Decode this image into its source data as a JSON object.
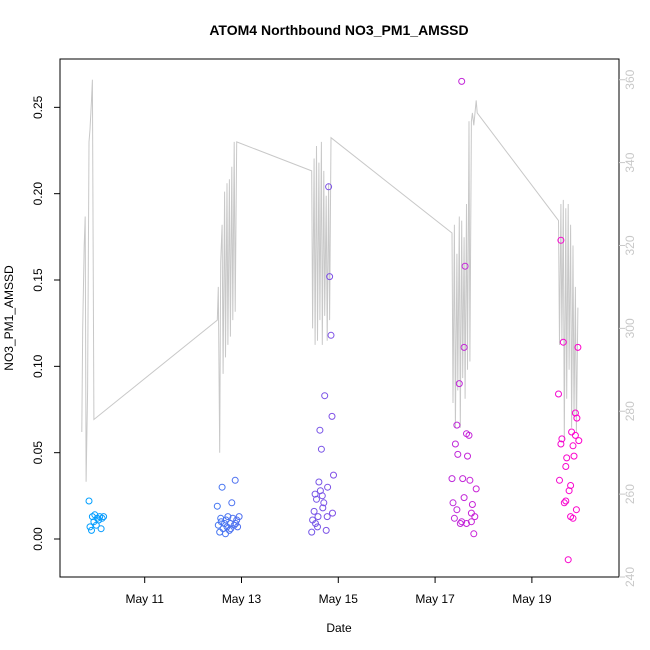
{
  "chart_data": {
    "type": "scatter",
    "title": "ATOM4 Northbound NO3_PM1_AMSSD",
    "xlabel": "Date",
    "ylabel": "NO3_PM1_AMSSD",
    "x_ticks": [
      "May 11",
      "May 13",
      "May 15",
      "May 17",
      "May 19"
    ],
    "x_tick_days": [
      11,
      13,
      15,
      17,
      19
    ],
    "xlim_days": [
      9.25,
      20.8
    ],
    "ylim": [
      -0.022,
      0.278
    ],
    "y_ticks": [
      "0.00",
      "0.05",
      "0.10",
      "0.15",
      "0.20",
      "0.25"
    ],
    "y_tick_values": [
      0,
      0.05,
      0.1,
      0.15,
      0.2,
      0.25
    ],
    "y2lim": [
      240,
      365
    ],
    "y2_ticks": [
      "240",
      "260",
      "280",
      "300",
      "320",
      "340",
      "360"
    ],
    "y2_tick_values": [
      240,
      260,
      280,
      300,
      320,
      340,
      360
    ],
    "point_color_start": "#00a0ff",
    "point_color_end": "#ff00cc",
    "line_color": "#c8c8c8",
    "points": [
      [
        9.85,
        0.022
      ],
      [
        9.87,
        0.007
      ],
      [
        9.9,
        0.005
      ],
      [
        9.92,
        0.013
      ],
      [
        9.95,
        0.01
      ],
      [
        9.97,
        0.014
      ],
      [
        10.0,
        0.008
      ],
      [
        10.02,
        0.012
      ],
      [
        10.05,
        0.011
      ],
      [
        10.07,
        0.013
      ],
      [
        10.1,
        0.006
      ],
      [
        10.12,
        0.012
      ],
      [
        10.15,
        0.013
      ],
      [
        12.5,
        0.019
      ],
      [
        12.52,
        0.008
      ],
      [
        12.55,
        0.004
      ],
      [
        12.57,
        0.012
      ],
      [
        12.6,
        0.03
      ],
      [
        12.62,
        0.006
      ],
      [
        12.65,
        0.009
      ],
      [
        12.67,
        0.003
      ],
      [
        12.7,
        0.007
      ],
      [
        12.72,
        0.013
      ],
      [
        12.75,
        0.005
      ],
      [
        12.77,
        0.009
      ],
      [
        12.8,
        0.021
      ],
      [
        12.82,
        0.012
      ],
      [
        12.85,
        0.008
      ],
      [
        12.87,
        0.034
      ],
      [
        12.9,
        0.011
      ],
      [
        12.92,
        0.007
      ],
      [
        12.95,
        0.013
      ],
      [
        12.58,
        0.01
      ],
      [
        12.68,
        0.011
      ],
      [
        12.78,
        0.006
      ],
      [
        12.88,
        0.009
      ],
      [
        14.45,
        0.004
      ],
      [
        14.47,
        0.011
      ],
      [
        14.5,
        0.016
      ],
      [
        14.52,
        0.026
      ],
      [
        14.55,
        0.023
      ],
      [
        14.57,
        0.007
      ],
      [
        14.6,
        0.033
      ],
      [
        14.62,
        0.063
      ],
      [
        14.65,
        0.052
      ],
      [
        14.67,
        0.025
      ],
      [
        14.7,
        0.021
      ],
      [
        14.72,
        0.083
      ],
      [
        14.75,
        0.005
      ],
      [
        14.77,
        0.013
      ],
      [
        14.8,
        0.204
      ],
      [
        14.82,
        0.152
      ],
      [
        14.85,
        0.118
      ],
      [
        14.87,
        0.071
      ],
      [
        14.9,
        0.037
      ],
      [
        14.58,
        0.013
      ],
      [
        14.68,
        0.018
      ],
      [
        14.78,
        0.03
      ],
      [
        14.88,
        0.015
      ],
      [
        14.53,
        0.009
      ],
      [
        14.63,
        0.028
      ],
      [
        17.35,
        0.035
      ],
      [
        17.37,
        0.021
      ],
      [
        17.4,
        0.012
      ],
      [
        17.42,
        0.055
      ],
      [
        17.45,
        0.066
      ],
      [
        17.47,
        0.049
      ],
      [
        17.5,
        0.09
      ],
      [
        17.52,
        0.009
      ],
      [
        17.55,
        0.265
      ],
      [
        17.57,
        0.035
      ],
      [
        17.6,
        0.111
      ],
      [
        17.62,
        0.158
      ],
      [
        17.65,
        0.061
      ],
      [
        17.67,
        0.048
      ],
      [
        17.7,
        0.06
      ],
      [
        17.72,
        0.034
      ],
      [
        17.75,
        0.01
      ],
      [
        17.77,
        0.02
      ],
      [
        17.8,
        0.003
      ],
      [
        17.82,
        0.013
      ],
      [
        17.85,
        0.029
      ],
      [
        17.45,
        0.017
      ],
      [
        17.55,
        0.01
      ],
      [
        17.65,
        0.009
      ],
      [
        17.75,
        0.015
      ],
      [
        17.6,
        0.024
      ],
      [
        19.55,
        0.084
      ],
      [
        19.57,
        0.034
      ],
      [
        19.6,
        0.173
      ],
      [
        19.62,
        0.058
      ],
      [
        19.65,
        0.114
      ],
      [
        19.67,
        0.021
      ],
      [
        19.7,
        0.042
      ],
      [
        19.72,
        0.047
      ],
      [
        19.75,
        -0.012
      ],
      [
        19.77,
        0.028
      ],
      [
        19.8,
        0.031
      ],
      [
        19.82,
        0.062
      ],
      [
        19.85,
        0.054
      ],
      [
        19.87,
        0.048
      ],
      [
        19.9,
        0.073
      ],
      [
        19.92,
        0.017
      ],
      [
        19.95,
        0.111
      ],
      [
        19.97,
        0.057
      ],
      [
        19.6,
        0.055
      ],
      [
        19.7,
        0.022
      ],
      [
        19.8,
        0.013
      ],
      [
        19.9,
        0.06
      ],
      [
        19.93,
        0.07
      ],
      [
        19.85,
        0.012
      ]
    ],
    "line": [
      [
        9.7,
        275
      ],
      [
        9.72,
        300
      ],
      [
        9.75,
        320
      ],
      [
        9.77,
        327
      ],
      [
        9.79,
        263
      ],
      [
        9.82,
        285
      ],
      [
        9.85,
        345
      ],
      [
        9.87,
        348
      ],
      [
        9.9,
        355
      ],
      [
        9.92,
        360
      ],
      [
        9.95,
        278
      ],
      [
        12.5,
        302
      ],
      [
        12.52,
        310
      ],
      [
        12.55,
        270
      ],
      [
        12.57,
        316
      ],
      [
        12.6,
        325
      ],
      [
        12.62,
        289
      ],
      [
        12.65,
        333
      ],
      [
        12.67,
        293
      ],
      [
        12.7,
        335
      ],
      [
        12.72,
        296
      ],
      [
        12.75,
        336
      ],
      [
        12.77,
        298
      ],
      [
        12.8,
        339
      ],
      [
        12.82,
        302
      ],
      [
        12.85,
        345
      ],
      [
        12.87,
        304
      ],
      [
        12.9,
        345
      ],
      [
        14.45,
        338
      ],
      [
        14.47,
        300
      ],
      [
        14.5,
        341
      ],
      [
        14.52,
        296
      ],
      [
        14.55,
        344
      ],
      [
        14.57,
        297
      ],
      [
        14.6,
        340
      ],
      [
        14.62,
        302
      ],
      [
        14.65,
        345
      ],
      [
        14.67,
        296
      ],
      [
        14.7,
        338
      ],
      [
        14.72,
        303
      ],
      [
        14.75,
        332
      ],
      [
        14.77,
        297
      ],
      [
        14.8,
        335
      ],
      [
        14.82,
        302
      ],
      [
        14.85,
        346
      ],
      [
        17.35,
        323
      ],
      [
        17.37,
        282
      ],
      [
        17.4,
        325
      ],
      [
        17.42,
        276
      ],
      [
        17.45,
        318
      ],
      [
        17.47,
        285
      ],
      [
        17.5,
        327
      ],
      [
        17.52,
        276
      ],
      [
        17.55,
        326
      ],
      [
        17.57,
        288
      ],
      [
        17.6,
        322
      ],
      [
        17.62,
        283
      ],
      [
        17.65,
        330
      ],
      [
        17.67,
        290
      ],
      [
        17.7,
        350
      ],
      [
        17.72,
        292
      ],
      [
        17.75,
        350
      ],
      [
        17.77,
        352
      ],
      [
        17.8,
        349
      ],
      [
        17.85,
        355
      ],
      [
        17.87,
        352
      ],
      [
        19.55,
        326
      ],
      [
        19.57,
        296
      ],
      [
        19.6,
        330
      ],
      [
        19.62,
        297
      ],
      [
        19.65,
        331
      ],
      [
        19.67,
        273
      ],
      [
        19.7,
        329
      ],
      [
        19.72,
        283
      ],
      [
        19.75,
        330
      ],
      [
        19.77,
        290
      ],
      [
        19.8,
        325
      ],
      [
        19.82,
        276
      ],
      [
        19.85,
        320
      ],
      [
        19.87,
        278
      ],
      [
        19.9,
        310
      ],
      [
        19.92,
        275
      ],
      [
        19.95,
        305
      ]
    ]
  }
}
